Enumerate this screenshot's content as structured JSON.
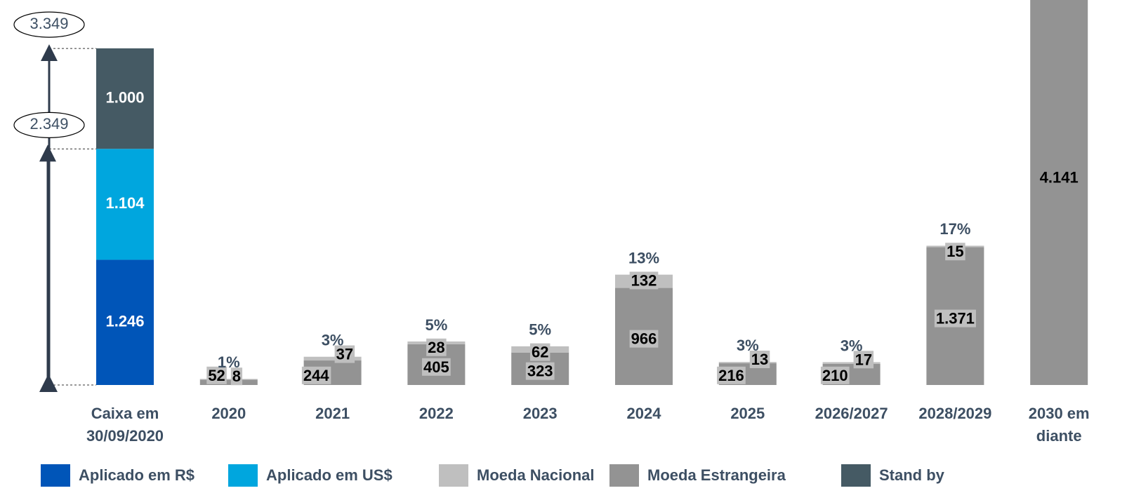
{
  "chart_data": {
    "type": "stacked_bar",
    "categories": [
      "Caixa em 30/09/2020",
      "2020",
      "2021",
      "2022",
      "2023",
      "2024",
      "2025",
      "2026/2027",
      "2028/2029",
      "2030 em diante"
    ],
    "series": [
      {
        "name": "Aplicado em R$",
        "color": "#0055b8",
        "values": [
          1246,
          null,
          null,
          null,
          null,
          null,
          null,
          null,
          null,
          null
        ],
        "value_labels": [
          "1.246",
          null,
          null,
          null,
          null,
          null,
          null,
          null,
          null,
          null
        ]
      },
      {
        "name": "Aplicado em US$",
        "color": "#00a6de",
        "values": [
          1104,
          null,
          null,
          null,
          null,
          null,
          null,
          null,
          null,
          null
        ],
        "value_labels": [
          "1.104",
          null,
          null,
          null,
          null,
          null,
          null,
          null,
          null,
          null
        ]
      },
      {
        "name": "Moeda Nacional",
        "color": "#bfbfbf",
        "values": [
          null,
          8,
          37,
          28,
          62,
          132,
          13,
          17,
          15,
          null
        ],
        "value_labels": [
          null,
          "8",
          "37",
          "28",
          "62",
          "132",
          "13",
          "17",
          "15",
          null
        ]
      },
      {
        "name": "Moeda Estrangeira",
        "color": "#939393",
        "values": [
          null,
          52,
          244,
          405,
          323,
          966,
          216,
          210,
          1371,
          4141
        ],
        "value_labels": [
          null,
          "52",
          "244",
          "405",
          "323",
          "966",
          "216",
          "210",
          "1.371",
          "4.141"
        ]
      },
      {
        "name": "Stand by",
        "color": "#455a64",
        "values": [
          1000,
          null,
          null,
          null,
          null,
          null,
          null,
          null,
          null,
          null
        ],
        "value_labels": [
          "1.000",
          null,
          null,
          null,
          null,
          null,
          null,
          null,
          null,
          null
        ]
      }
    ],
    "shares": {
      "values": [
        null,
        1,
        3,
        5,
        5,
        13,
        3,
        3,
        17,
        null
      ],
      "value_labels": [
        null,
        "1%",
        "3%",
        "5%",
        "5%",
        "13%",
        "3%",
        "3%",
        "17%",
        null
      ]
    },
    "totals": [
      {
        "value": 3349,
        "label": "3.349"
      },
      {
        "value": 2349,
        "label": "2.349"
      }
    ]
  }
}
